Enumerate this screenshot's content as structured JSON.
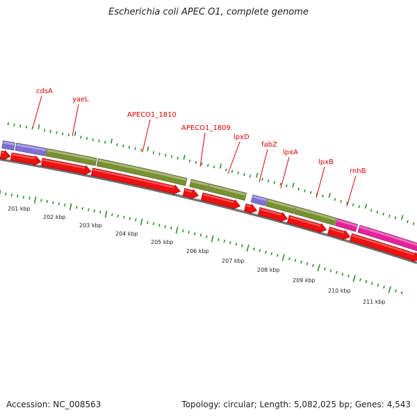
{
  "title": "Escherichia coli APEC O1, complete genome",
  "footer": {
    "accession": "Accession: NC_008563",
    "stats": "Topology: circular; Length: 5,082,025 bp; Genes: 4,543"
  },
  "colors": {
    "backbone": "#8a8a8a",
    "tick": "#2e8b2e",
    "label": "#dd0000",
    "cds_arrow": "#ee1111",
    "kbp_text": "#222222"
  },
  "gene_labels": [
    "cdsA",
    "yaeL",
    "APECO1_1810",
    "APECO1_1809",
    "lpxD",
    "fabZ",
    "lpxA",
    "lpxB",
    "rnhB"
  ],
  "kbp_labels": [
    "201 kbp",
    "202 kbp",
    "203 kbp",
    "204 kbp",
    "205 kbp",
    "206 kbp",
    "207 kbp",
    "208 kbp",
    "209 kbp",
    "210 kbp",
    "211 kbp"
  ]
}
